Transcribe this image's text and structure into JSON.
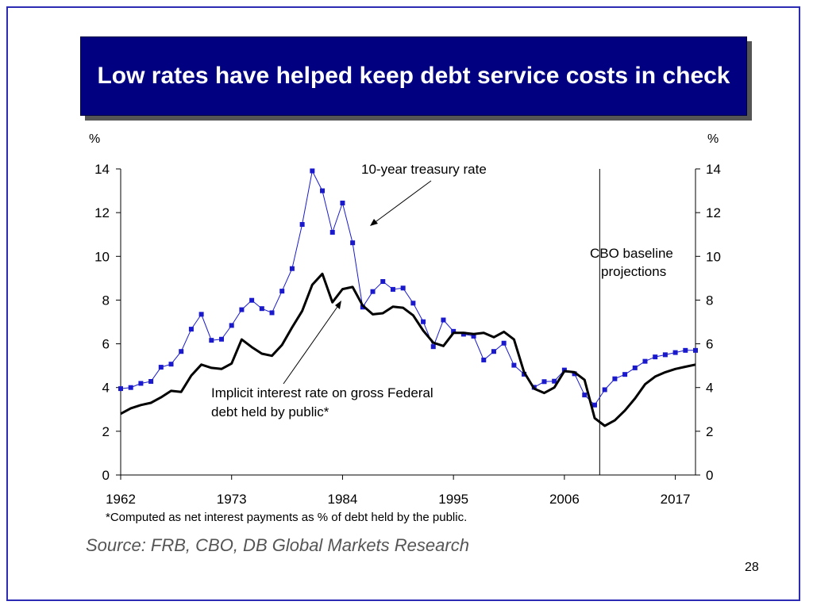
{
  "slide": {
    "title": "Low rates have helped keep debt service costs in check",
    "footnote": "*Computed as net interest payments as % of debt held by the public.",
    "source": "Source: FRB, CBO, DB Global Markets Research",
    "page_number": "28"
  },
  "colors": {
    "frame": "#2b2bb3",
    "title_bg": "#000080",
    "title_text": "#ffffff",
    "treasury_series": "#1a1acc",
    "implicit_series": "#000000"
  },
  "chart_data": {
    "type": "line",
    "y_unit_left": "%",
    "y_unit_right": "%",
    "ylim": [
      0,
      14
    ],
    "yticks": [
      0,
      2,
      4,
      6,
      8,
      10,
      12,
      14
    ],
    "xlim": [
      1962,
      2019
    ],
    "xticks": [
      1962,
      1973,
      1984,
      1995,
      2006,
      2017
    ],
    "grid": false,
    "projection_start": 2009.5,
    "annotations": {
      "treasury": "10-year treasury rate",
      "implicit_line1": "Implicit interest rate on gross Federal",
      "implicit_line2": "debt held by public*",
      "cbo_line1": "CBO baseline",
      "cbo_line2": "projections"
    },
    "series": [
      {
        "key": "treasury",
        "style": "line-square-markers",
        "x": [
          1962,
          1963,
          1964,
          1965,
          1966,
          1967,
          1968,
          1969,
          1970,
          1971,
          1972,
          1973,
          1974,
          1975,
          1976,
          1977,
          1978,
          1979,
          1980,
          1981,
          1982,
          1983,
          1984,
          1985,
          1986,
          1987,
          1988,
          1989,
          1990,
          1991,
          1992,
          1993,
          1994,
          1995,
          1996,
          1997,
          1998,
          1999,
          2000,
          2001,
          2002,
          2003,
          2004,
          2005,
          2006,
          2007,
          2008,
          2009,
          2010,
          2011,
          2012,
          2013,
          2014,
          2015,
          2016,
          2017,
          2018,
          2019
        ],
        "y": [
          3.95,
          4.0,
          4.19,
          4.28,
          4.93,
          5.07,
          5.65,
          6.67,
          7.35,
          6.16,
          6.21,
          6.84,
          7.56,
          7.99,
          7.61,
          7.42,
          8.41,
          9.44,
          11.46,
          13.91,
          13.0,
          11.1,
          12.44,
          10.62,
          7.68,
          8.39,
          8.85,
          8.49,
          8.55,
          7.86,
          7.01,
          5.87,
          7.09,
          6.57,
          6.44,
          6.35,
          5.26,
          5.65,
          6.03,
          5.02,
          4.61,
          4.01,
          4.27,
          4.29,
          4.8,
          4.63,
          3.66,
          3.2,
          3.9,
          4.4,
          4.6,
          4.9,
          5.2,
          5.4,
          5.5,
          5.6,
          5.7,
          5.7
        ]
      },
      {
        "key": "implicit",
        "style": "thick-line",
        "x": [
          1962,
          1963,
          1964,
          1965,
          1966,
          1967,
          1968,
          1969,
          1970,
          1971,
          1972,
          1973,
          1974,
          1975,
          1976,
          1977,
          1978,
          1979,
          1980,
          1981,
          1982,
          1983,
          1984,
          1985,
          1986,
          1987,
          1988,
          1989,
          1990,
          1991,
          1992,
          1993,
          1994,
          1995,
          1996,
          1997,
          1998,
          1999,
          2000,
          2001,
          2002,
          2003,
          2004,
          2005,
          2006,
          2007,
          2008,
          2009,
          2010,
          2011,
          2012,
          2013,
          2014,
          2015,
          2016,
          2017,
          2018,
          2019
        ],
        "y": [
          2.8,
          3.05,
          3.2,
          3.3,
          3.55,
          3.85,
          3.8,
          4.55,
          5.05,
          4.9,
          4.85,
          5.1,
          6.2,
          5.85,
          5.55,
          5.45,
          5.95,
          6.75,
          7.5,
          8.7,
          9.2,
          7.9,
          8.5,
          8.6,
          7.75,
          7.35,
          7.4,
          7.7,
          7.65,
          7.3,
          6.6,
          6.05,
          5.9,
          6.5,
          6.5,
          6.45,
          6.5,
          6.3,
          6.55,
          6.2,
          4.7,
          3.95,
          3.75,
          4.0,
          4.75,
          4.7,
          4.35,
          2.6,
          2.25,
          2.5,
          2.95,
          3.5,
          4.15,
          4.5,
          4.7,
          4.85,
          4.95,
          5.05
        ]
      }
    ]
  }
}
